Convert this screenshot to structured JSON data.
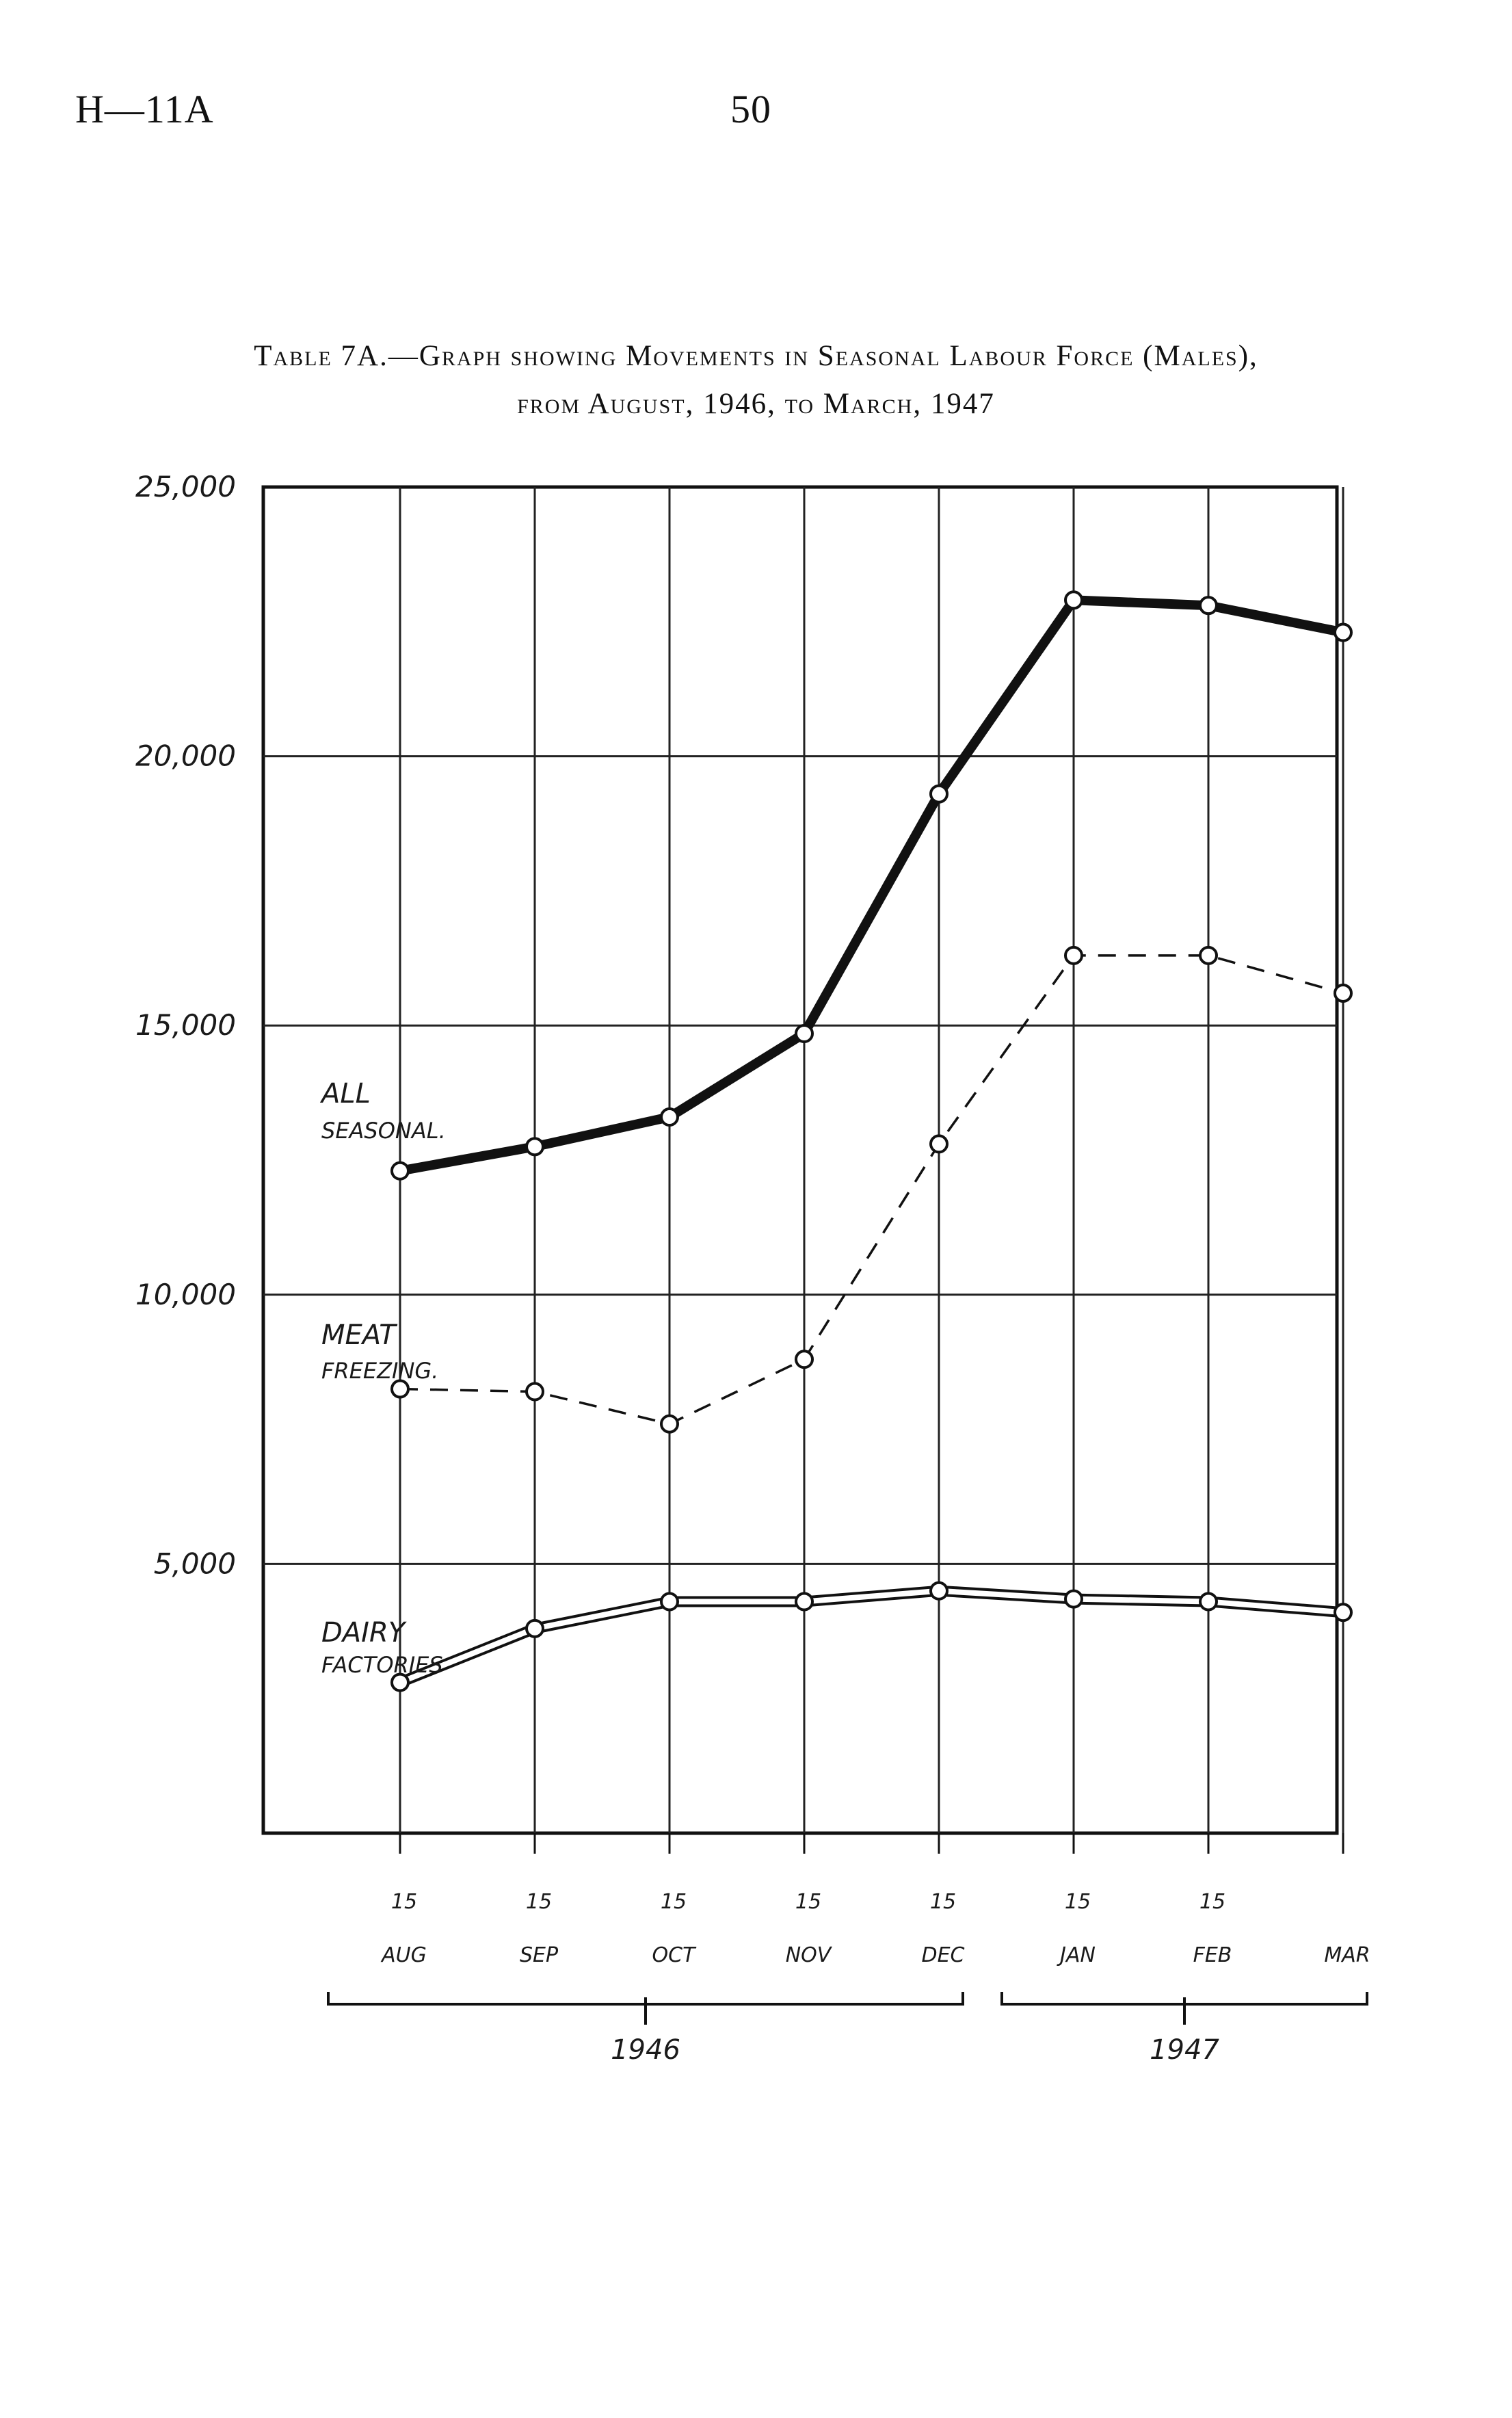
{
  "page": {
    "code": "H—11A",
    "number": "50"
  },
  "title": {
    "line1": "Table 7A.—Graph showing Movements in Seasonal Labour Force (Males),",
    "line2": "from August, 1946, to March, 1947"
  },
  "chart_data": {
    "type": "line",
    "ylim": [
      0,
      25000
    ],
    "yticks": [
      "25,000",
      "20,000",
      "15,000",
      "10,000",
      "5,000"
    ],
    "grid": true,
    "categories_day": [
      "15",
      "15",
      "15",
      "15",
      "15",
      "15",
      "15",
      ""
    ],
    "categories_month": [
      "AUG",
      "SEP",
      "OCT",
      "NOV",
      "DEC",
      "JAN",
      "FEB",
      "MAR"
    ],
    "year_groups": [
      {
        "label": "1946",
        "from": 0,
        "to": 4
      },
      {
        "label": "1947",
        "from": 5,
        "to": 7
      }
    ],
    "series": [
      {
        "name": "ALL SEASONAL.",
        "style": "thick",
        "color": "#111111",
        "values": [
          12300,
          12750,
          13300,
          14850,
          19300,
          22900,
          22800,
          22300
        ]
      },
      {
        "name": "MEAT FREEZING.",
        "style": "dashed",
        "color": "#111111",
        "values": [
          8250,
          8200,
          7600,
          8800,
          12800,
          16300,
          16300,
          15600
        ]
      },
      {
        "name": "DAIRY FACTORIES",
        "style": "double",
        "color": "#111111",
        "values": [
          2800,
          3800,
          4300,
          4300,
          4500,
          4350,
          4300,
          4100
        ]
      }
    ]
  }
}
